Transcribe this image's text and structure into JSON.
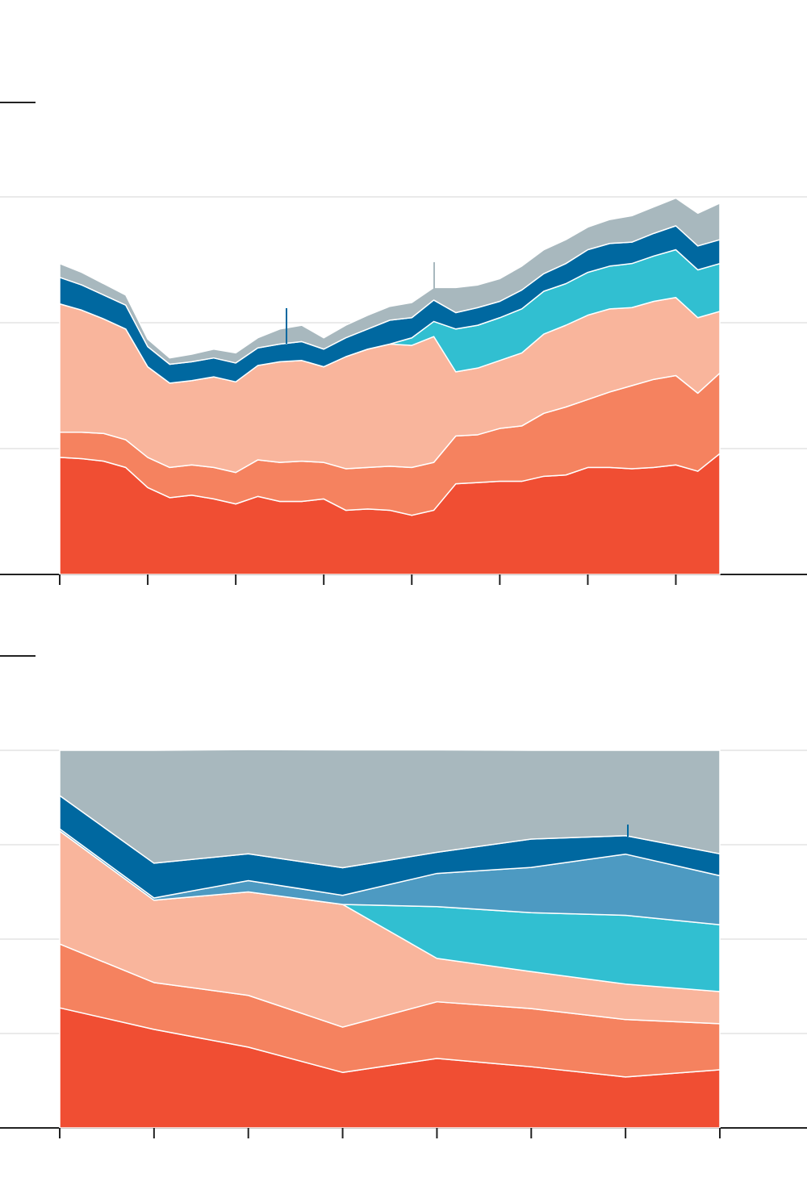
{
  "chart_data": [
    {
      "type": "area",
      "stacked": true,
      "grid": true,
      "x": [
        0,
        1,
        2,
        3,
        4,
        5,
        6,
        7,
        8,
        9,
        10,
        11,
        12,
        13,
        14,
        15,
        16,
        17,
        18,
        19,
        20,
        21,
        22,
        23,
        24,
        25,
        26,
        27,
        28,
        29,
        30
      ],
      "xlim": [
        0,
        30
      ],
      "xticks": [
        0,
        4,
        8,
        12,
        16,
        20,
        24,
        28
      ],
      "ylim": [
        0,
        30
      ],
      "yticks": [
        0,
        10,
        20,
        30
      ],
      "series": [
        {
          "color": "#f04e33",
          "values": [
            9.3,
            9.2,
            9.0,
            8.5,
            6.9,
            6.1,
            6.3,
            6.0,
            5.6,
            6.2,
            5.8,
            5.8,
            6.0,
            5.1,
            5.2,
            5.1,
            4.7,
            5.1,
            7.2,
            7.3,
            7.4,
            7.4,
            7.8,
            7.9,
            8.5,
            8.5,
            8.4,
            8.5,
            8.7,
            8.2,
            9.6
          ]
        },
        {
          "color": "#f5825f",
          "values": [
            2.0,
            2.1,
            2.2,
            2.2,
            2.4,
            2.4,
            2.4,
            2.5,
            2.5,
            2.9,
            3.1,
            3.2,
            2.9,
            3.3,
            3.3,
            3.5,
            3.8,
            3.8,
            3.8,
            3.8,
            4.2,
            4.4,
            5.0,
            5.4,
            5.4,
            6.0,
            6.6,
            7.0,
            7.1,
            6.2,
            6.4
          ]
        },
        {
          "color": "#f9b59c",
          "values": [
            10.2,
            9.7,
            9.1,
            8.8,
            7.2,
            6.7,
            6.7,
            7.2,
            7.2,
            7.5,
            8.0,
            8.0,
            7.6,
            8.9,
            9.4,
            9.7,
            9.7,
            10.0,
            5.1,
            5.3,
            5.4,
            5.8,
            6.3,
            6.5,
            6.7,
            6.6,
            6.2,
            6.2,
            6.2,
            6.0,
            4.9
          ]
        },
        {
          "color": "#31bfd1",
          "values": [
            0,
            0,
            0,
            0,
            0,
            0,
            0,
            0,
            0,
            0,
            0,
            0,
            0,
            0,
            0,
            0,
            0.6,
            1.2,
            3.4,
            3.4,
            3.4,
            3.5,
            3.4,
            3.3,
            3.4,
            3.4,
            3.5,
            3.6,
            3.8,
            3.8,
            3.8
          ]
        },
        {
          "color": "#0068a0",
          "values": [
            2.1,
            2.0,
            1.9,
            1.9,
            1.6,
            1.5,
            1.5,
            1.5,
            1.5,
            1.4,
            1.4,
            1.5,
            1.4,
            1.5,
            1.6,
            1.9,
            1.6,
            1.7,
            1.3,
            1.4,
            1.3,
            1.5,
            1.4,
            1.6,
            1.8,
            1.8,
            1.7,
            1.8,
            1.9,
            1.9,
            1.9
          ]
        },
        {
          "color": "#a8b8be",
          "values": [
            1.1,
            1.0,
            0.9,
            0.8,
            0.6,
            0.5,
            0.6,
            0.7,
            0.8,
            0.8,
            1.2,
            1.3,
            0.9,
            1.0,
            1.1,
            1.1,
            1.2,
            1.0,
            2.0,
            1.8,
            1.8,
            1.9,
            1.9,
            1.9,
            1.8,
            1.9,
            2.1,
            2.1,
            2.2,
            2.6,
            2.9
          ]
        }
      ]
    },
    {
      "type": "area",
      "stacked": true,
      "grid": true,
      "x": [
        0,
        1,
        2,
        3,
        4,
        5,
        6,
        7
      ],
      "xlim": [
        0,
        7
      ],
      "xticks": [
        0,
        1,
        2,
        3,
        4,
        5,
        6,
        7
      ],
      "ylim": [
        0,
        100
      ],
      "yticks": [
        0,
        25,
        50,
        75,
        100
      ],
      "series": [
        {
          "color": "#f04e33",
          "values": [
            31.8,
            26.1,
            21.4,
            14.7,
            18.4,
            16.2,
            13.5,
            15.4
          ]
        },
        {
          "color": "#f5825f",
          "values": [
            16.9,
            12.4,
            13.7,
            12.0,
            15.0,
            15.4,
            15.2,
            12.2
          ]
        },
        {
          "color": "#f9b59c",
          "values": [
            29.9,
            21.8,
            27.4,
            32.5,
            11.5,
            9.8,
            9.4,
            8.5
          ]
        },
        {
          "color": "#31bfd1",
          "values": [
            0,
            0,
            0,
            0,
            13.7,
            15.6,
            18.2,
            17.7
          ]
        },
        {
          "color": "#4d9ac2",
          "values": [
            0.6,
            0.6,
            3.0,
            2.4,
            8.8,
            12.0,
            16.2,
            13.0
          ]
        },
        {
          "color": "#0068a0",
          "values": [
            8.8,
            9.2,
            7.1,
            7.3,
            5.6,
            7.5,
            4.9,
            5.8
          ]
        },
        {
          "color": "#a8b8be",
          "values": [
            12.0,
            29.9,
            27.6,
            31.2,
            27.1,
            23.5,
            22.6,
            27.4
          ]
        }
      ]
    }
  ]
}
